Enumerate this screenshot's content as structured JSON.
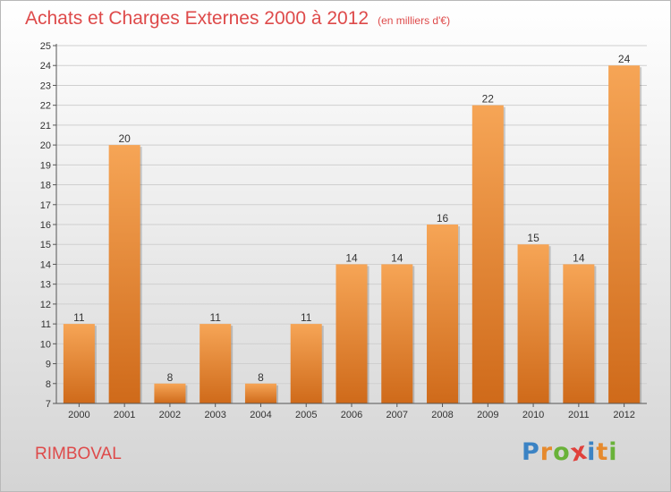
{
  "title": "Achats et Charges Externes 2000 à 2012",
  "unit_note": "(en milliers d'€)",
  "place": "RIMBOVAL",
  "brand": {
    "text": "Proxiti",
    "letter_colors": [
      "#3b83c4",
      "#e68a2e",
      "#69b239",
      "#e0413c",
      "#3b83c4",
      "#e68a2e",
      "#69b239"
    ]
  },
  "colors": {
    "bar_top": "#f6a556",
    "bar_bottom": "#cf6a1a",
    "title": "#de4a4a"
  },
  "chart_data": {
    "type": "bar",
    "categories": [
      "2000",
      "2001",
      "2002",
      "2003",
      "2004",
      "2005",
      "2006",
      "2007",
      "2008",
      "2009",
      "2010",
      "2011",
      "2012"
    ],
    "values": [
      11,
      20,
      8,
      11,
      8,
      11,
      14,
      14,
      16,
      22,
      15,
      14,
      24
    ],
    "ylim": [
      7,
      25
    ],
    "yticks": [
      7,
      8,
      9,
      10,
      11,
      12,
      13,
      14,
      15,
      16,
      17,
      18,
      19,
      20,
      21,
      22,
      23,
      24,
      25
    ],
    "grid": true,
    "data_labels": true,
    "title": "Achats et Charges Externes 2000 à 2012",
    "xlabel": "",
    "ylabel": ""
  }
}
